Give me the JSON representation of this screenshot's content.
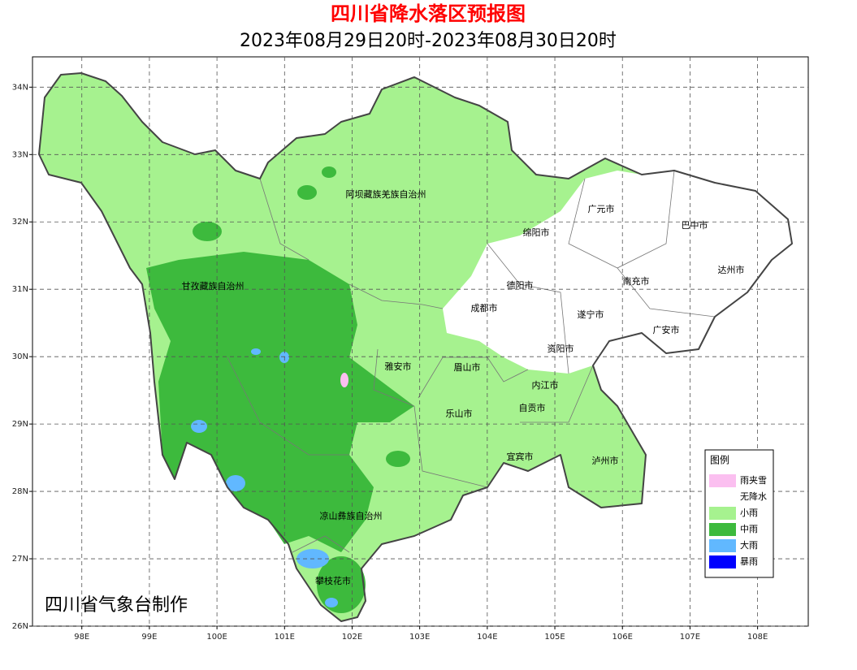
{
  "title": "四川省降水落区预报图",
  "subtitle": "2023年08月29日20时-2023年08月30日20时",
  "map": {
    "xlim": [
      97.27,
      108.75
    ],
    "ylim": [
      26,
      34.45
    ],
    "grid": true,
    "xticks": [
      {
        "value": 98,
        "label": "98E"
      },
      {
        "value": 99,
        "label": "99E"
      },
      {
        "value": 100,
        "label": "100E"
      },
      {
        "value": 101,
        "label": "101E"
      },
      {
        "value": 102,
        "label": "102E"
      },
      {
        "value": 103,
        "label": "103E"
      },
      {
        "value": 104,
        "label": "104E"
      },
      {
        "value": 105,
        "label": "105E"
      },
      {
        "value": 106,
        "label": "106E"
      },
      {
        "value": 107,
        "label": "107E"
      },
      {
        "value": 108,
        "label": "108E"
      }
    ],
    "yticks": [
      {
        "value": 26,
        "label": "26N"
      },
      {
        "value": 27,
        "label": "27N"
      },
      {
        "value": 28,
        "label": "28N"
      },
      {
        "value": 29,
        "label": "29N"
      },
      {
        "value": 30,
        "label": "30N"
      },
      {
        "value": 31,
        "label": "31N"
      },
      {
        "value": 32,
        "label": "32N"
      },
      {
        "value": 33,
        "label": "33N"
      },
      {
        "value": 34,
        "label": "34N"
      }
    ],
    "regions": [
      "阿坝藏族羌族自治州",
      "广元市",
      "巴中市",
      "绵阳市",
      "甘孜藏族自治州",
      "德阳市",
      "南充市",
      "达州市",
      "成都市",
      "遂宁市",
      "广安市",
      "资阳市",
      "雅安市",
      "眉山市",
      "内江市",
      "自贡市",
      "乐山市",
      "宜宾市",
      "泸州市",
      "凉山彝族自治州",
      "攀枝花市"
    ]
  },
  "legend": {
    "title": "图例",
    "items": [
      {
        "label": "雨夹雪",
        "color": "#fbbff0"
      },
      {
        "label": "无降水",
        "color": "#ffffff"
      },
      {
        "label": "小雨",
        "color": "#a6f28f"
      },
      {
        "label": "中雨",
        "color": "#3dba3d"
      },
      {
        "label": "大雨",
        "color": "#61b8ff"
      },
      {
        "label": "暴雨",
        "color": "#0000fe"
      }
    ]
  },
  "credit": "四川省气象台制作"
}
